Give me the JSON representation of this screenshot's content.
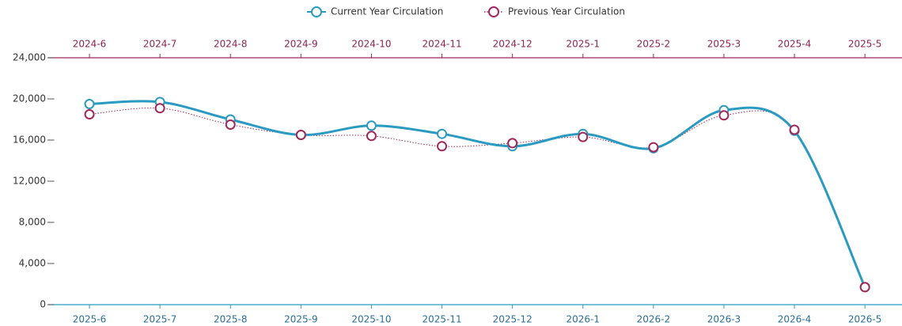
{
  "chart_data": {
    "type": "line",
    "categories": [
      "2025-6",
      "2025-7",
      "2025-8",
      "2025-9",
      "2025-10",
      "2025-11",
      "2025-12",
      "2026-1",
      "2026-2",
      "2026-3",
      "2026-4",
      "2026-5"
    ],
    "top_categories": [
      "2024-6",
      "2024-7",
      "2024-8",
      "2024-9",
      "2024-10",
      "2024-11",
      "2024-12",
      "2025-1",
      "2025-2",
      "2025-3",
      "2025-4",
      "2025-5"
    ],
    "series": [
      {
        "name": "Current Year Circulation",
        "color": "#2b9ac0",
        "values": [
          19500,
          19700,
          18000,
          16500,
          17400,
          16600,
          15400,
          16600,
          15200,
          18900,
          16900,
          1700
        ]
      },
      {
        "name": "Previous Year Circulation",
        "color": "#a0285a",
        "values": [
          18500,
          19100,
          17500,
          16500,
          16400,
          15400,
          15700,
          16300,
          15300,
          18400,
          17000,
          1700
        ]
      }
    ],
    "ylim": [
      0,
      24000
    ],
    "yticks": [
      0,
      {
        "value": 4000,
        "label": "4,000"
      },
      {
        "value": 8000,
        "label": "8,000"
      },
      {
        "value": 12000,
        "label": "12,000"
      },
      {
        "value": 16000,
        "label": "16,000"
      },
      {
        "value": 20000,
        "label": "20,000"
      },
      {
        "value": 24000,
        "label": "24,000"
      }
    ],
    "grid": false,
    "legend": "top"
  }
}
